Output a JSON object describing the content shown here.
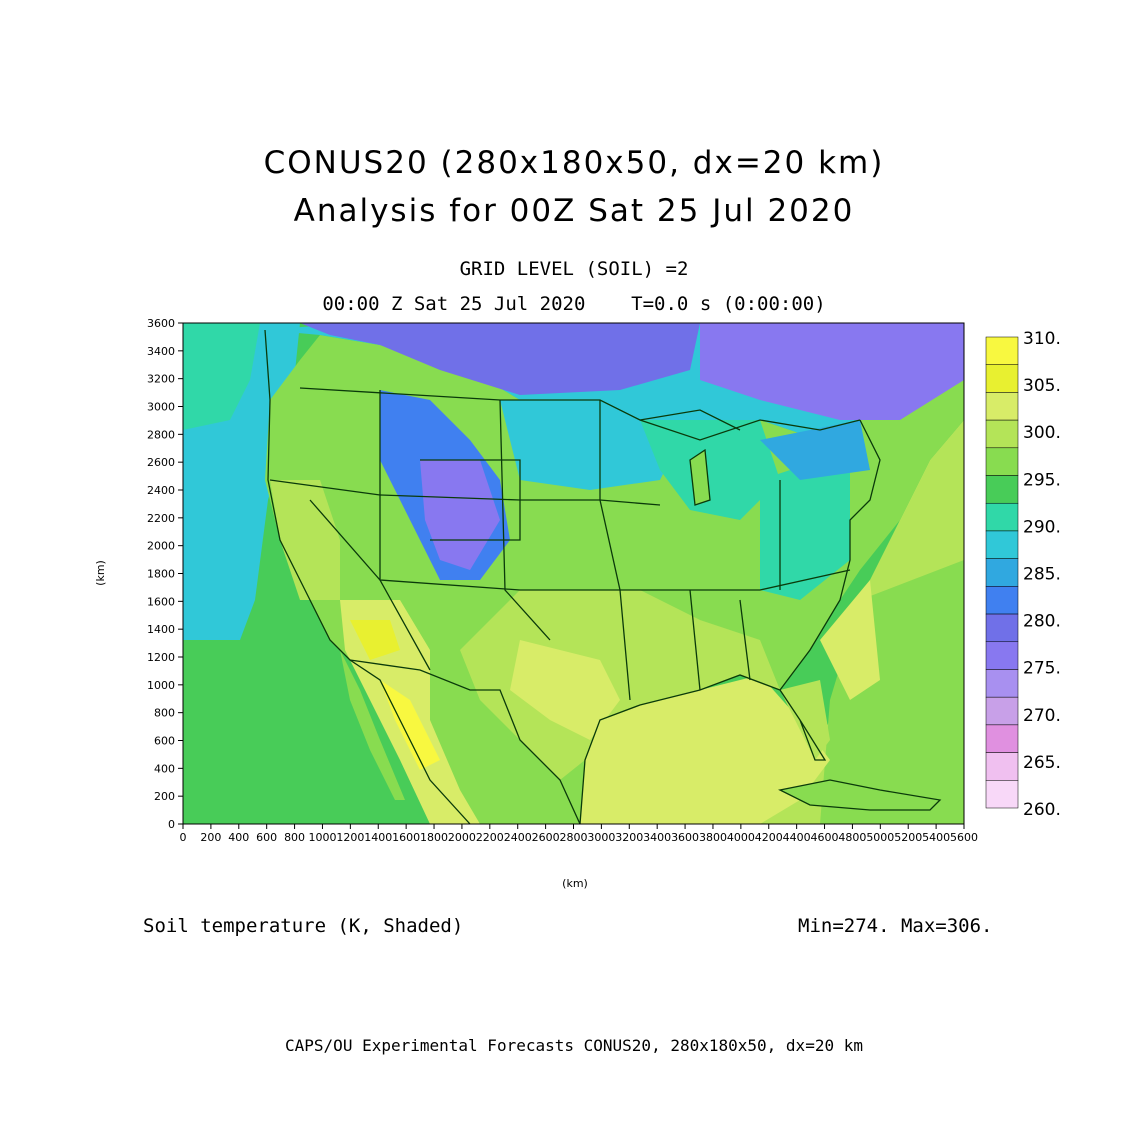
{
  "title": "CONUS20 (280x180x50, dx=20 km)",
  "subtitle": "Analysis for 00Z Sat 25 Jul 2020",
  "level_label": "GRID LEVEL (SOIL) =2",
  "time_label": "00:00 Z Sat 25 Jul 2020    T=0.0 s (0:00:00)",
  "axis": {
    "xlabel": "(km)",
    "ylabel": "(km)",
    "x_ticks": [
      "0",
      "200",
      "400",
      "600",
      "800",
      "1000",
      "1200",
      "1400",
      "1600",
      "1800",
      "2000",
      "2200",
      "2400",
      "2600",
      "2800",
      "3000",
      "3200",
      "3400",
      "3600",
      "3800",
      "4000",
      "4200",
      "4400",
      "4600",
      "4800",
      "5000",
      "5200",
      "5400",
      "5600"
    ],
    "y_ticks": [
      "0",
      "200",
      "400",
      "600",
      "800",
      "1000",
      "1200",
      "1400",
      "1600",
      "1800",
      "2000",
      "2200",
      "2400",
      "2600",
      "2800",
      "3000",
      "3200",
      "3400",
      "3600"
    ],
    "xlim": [
      0,
      5600
    ],
    "ylim": [
      0,
      3600
    ]
  },
  "colorbar": {
    "labels": [
      "310.",
      "305.",
      "300.",
      "295.",
      "290.",
      "285.",
      "280.",
      "275.",
      "270.",
      "265.",
      "260."
    ],
    "colors": [
      "#f8f840",
      "#e8f030",
      "#d8ec68",
      "#b4e458",
      "#88dc50",
      "#48cc58",
      "#30d8a8",
      "#30c8d8",
      "#30a8e0",
      "#4080f0",
      "#7070e8",
      "#8878f0",
      "#a890f0",
      "#c8a0e8",
      "#e090e0",
      "#f0c0f0",
      "#f8d8f8"
    ]
  },
  "variable_label": "Soil temperature (K, Shaded)",
  "minmax_label": "Min=274. Max=306.",
  "footer": "CAPS/OU Experimental Forecasts  CONUS20, 280x180x50, dx=20 km",
  "map_colors": {
    "ocean_pacific": "#48cc58",
    "gulf": "#d8ec68",
    "atlantic_south": "#b4e458",
    "atlantic_north": "#88dc50",
    "outline": "#0a3a0a"
  }
}
